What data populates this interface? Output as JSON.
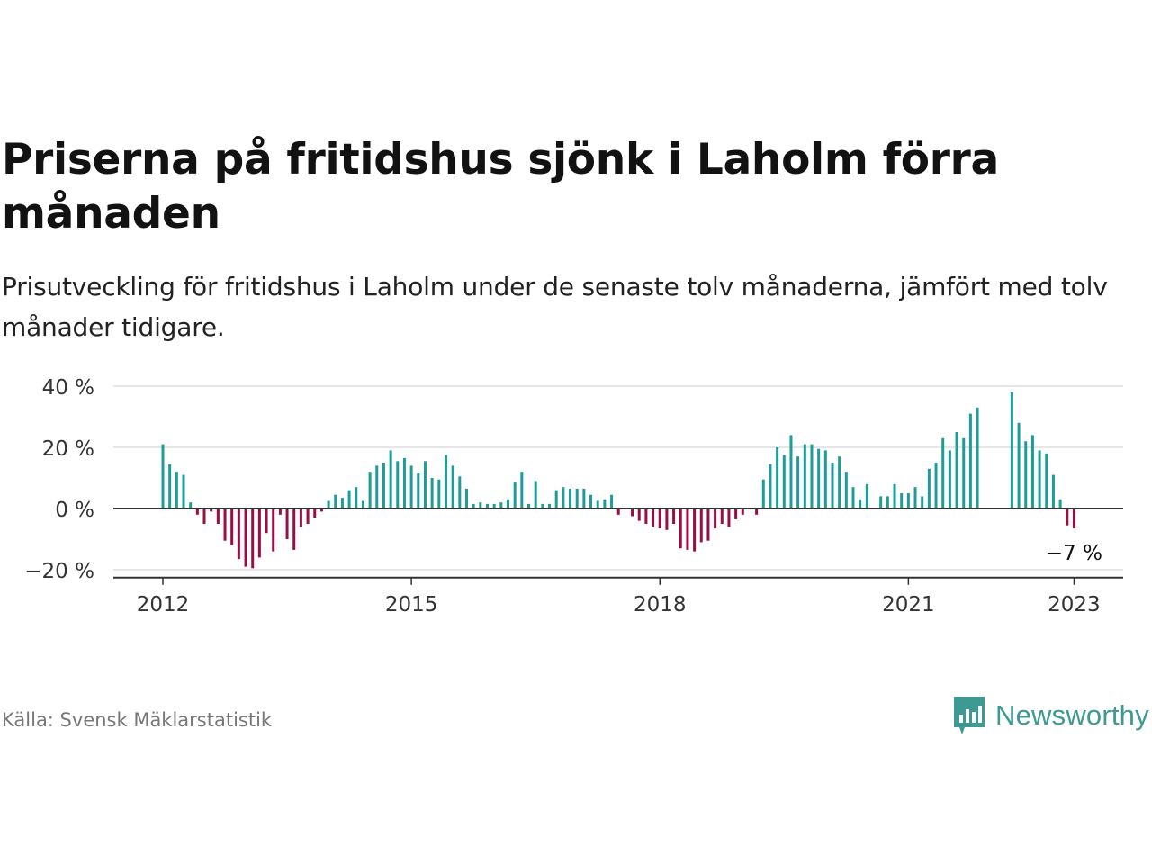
{
  "title": "Priserna på fritidshus sjönk i Laholm förra månaden",
  "subtitle": "Prisutveckling för fritidshus i Laholm under de senaste tolv månaderna, jämfört med tolv månader tidigare.",
  "source": "Källa: Svensk Mäklarstatistik",
  "logo_text": "Newsworthy",
  "colors": {
    "positive": "#1d9d97",
    "negative": "#9b0d47",
    "logo": "#3d9a93"
  },
  "chart_data": {
    "type": "bar",
    "ylim": [
      -22,
      42
    ],
    "yticks": [
      {
        "value": 40,
        "label": "40 %"
      },
      {
        "value": 20,
        "label": "20 %"
      },
      {
        "value": 0,
        "label": "0 %"
      },
      {
        "value": -20,
        "label": "−20 %"
      }
    ],
    "xticks": [
      {
        "label": "2012",
        "index": 0
      },
      {
        "label": "2015",
        "index": 36
      },
      {
        "label": "2018",
        "index": 72
      },
      {
        "label": "2021",
        "index": 108
      },
      {
        "label": "2023",
        "index": 132
      }
    ],
    "start": "2012-01",
    "grid": true,
    "annotation": {
      "label": "−7 %"
    },
    "values": [
      21,
      14.5,
      12,
      11,
      2,
      -2,
      -5,
      -1,
      -5,
      -10.5,
      -12,
      -16.5,
      -19,
      -19.5,
      -16,
      -8,
      -14,
      -2,
      -10,
      -13.5,
      -6,
      -5,
      -3,
      -1,
      2.5,
      4.5,
      3.5,
      6,
      7,
      2.5,
      12,
      14,
      15,
      19,
      15.5,
      16.5,
      14,
      11.5,
      15.5,
      10,
      9.5,
      17.5,
      14,
      10.5,
      6.5,
      1.5,
      2,
      1.5,
      1.5,
      2,
      3,
      8.5,
      12,
      1.5,
      9,
      1.5,
      1.5,
      6,
      7,
      6.5,
      6.5,
      6.5,
      4.5,
      2.5,
      3,
      4.5,
      -2,
      0,
      -2.5,
      -4,
      -5,
      -6,
      -6.5,
      -7,
      -5,
      -13,
      -13.5,
      -14,
      -11,
      -10.5,
      -6.5,
      -5,
      -6,
      -3.5,
      -2,
      0,
      -2,
      9.5,
      14.5,
      20,
      17.5,
      24,
      17,
      21,
      21,
      19.5,
      19,
      15,
      17,
      12,
      7,
      3,
      8,
      null,
      4,
      4,
      8,
      5,
      5,
      7,
      4,
      13,
      15,
      23,
      19,
      25,
      23,
      31,
      33,
      null,
      null,
      null,
      null,
      38,
      28,
      22,
      24,
      19,
      18,
      11,
      3,
      -5.5,
      -6.5
    ]
  }
}
